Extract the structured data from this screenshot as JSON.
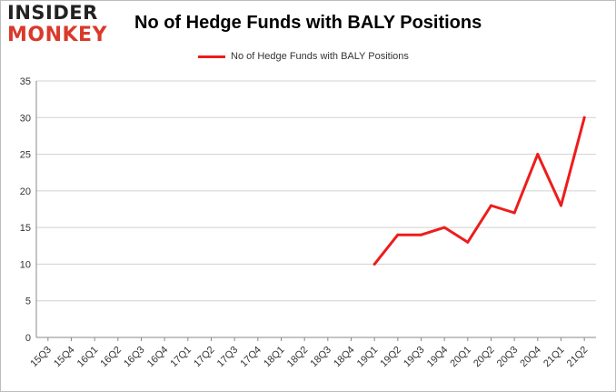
{
  "logo": {
    "line1": "INSIDER",
    "line2": "MONKEY"
  },
  "chart_data": {
    "type": "line",
    "title": "No of Hedge Funds with BALY Positions",
    "xlabel": "",
    "ylabel": "",
    "categories": [
      "15Q3",
      "15Q4",
      "16Q1",
      "16Q2",
      "16Q3",
      "16Q4",
      "17Q1",
      "17Q2",
      "17Q3",
      "17Q4",
      "18Q1",
      "18Q2",
      "18Q3",
      "18Q4",
      "19Q1",
      "19Q2",
      "19Q3",
      "19Q4",
      "20Q1",
      "20Q2",
      "20Q3",
      "20Q4",
      "21Q1",
      "21Q2"
    ],
    "series": [
      {
        "name": "No of Hedge Funds with BALY Positions",
        "color": "#ee1c1c",
        "values": [
          null,
          null,
          null,
          null,
          null,
          null,
          null,
          null,
          null,
          null,
          null,
          null,
          null,
          null,
          10,
          14,
          14,
          15,
          13,
          18,
          17,
          25,
          18,
          30
        ]
      }
    ],
    "ylim": [
      0,
      35
    ],
    "yticks": [
      0,
      5,
      10,
      15,
      20,
      25,
      30,
      35
    ],
    "grid": true,
    "legend": "top-center"
  }
}
